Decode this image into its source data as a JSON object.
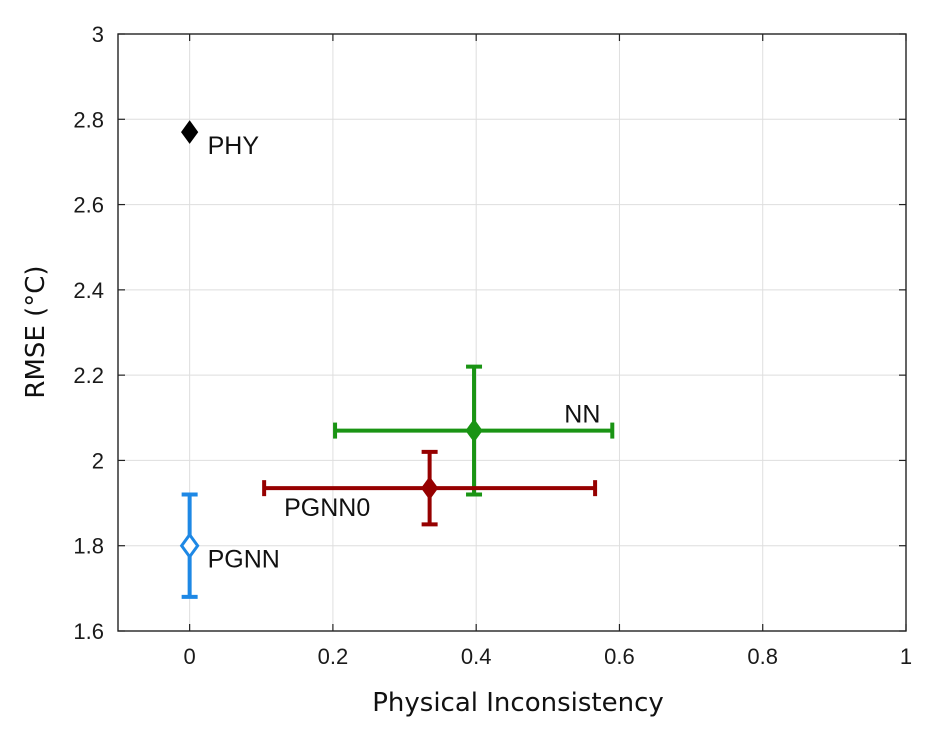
{
  "chart_data": {
    "type": "scatter",
    "xlabel": "Physical Inconsistency",
    "ylabel": "RMSE (°C)",
    "xlim": [
      -0.1,
      1
    ],
    "ylim": [
      1.6,
      3
    ],
    "xticks": [
      0,
      0.2,
      0.4,
      0.6,
      0.8,
      1
    ],
    "xtick_labels": [
      "0",
      "0.2",
      "0.4",
      "0.6",
      "0.8",
      "1"
    ],
    "yticks": [
      1.6,
      1.8,
      2,
      2.2,
      2.4,
      2.6,
      2.8,
      3
    ],
    "ytick_labels": [
      "1.6",
      "1.8",
      "2",
      "2.2",
      "2.4",
      "2.6",
      "2.8",
      "3"
    ],
    "grid": true,
    "legend": "none",
    "series": [
      {
        "name": "PHY",
        "color": "#000000",
        "marker": "diamond-filled",
        "x": 0,
        "y": 2.77,
        "x_err": null,
        "y_err": null,
        "label_position": "below-right"
      },
      {
        "name": "NN",
        "color": "#1a9414",
        "marker": "diamond-filled",
        "x": 0.397,
        "y": 2.07,
        "x_err": [
          0.203,
          0.59
        ],
        "y_err": [
          1.92,
          2.22
        ],
        "label_position": "above-right"
      },
      {
        "name": "PGNN0",
        "color": "#960000",
        "marker": "diamond-filled",
        "x": 0.335,
        "y": 1.935,
        "x_err": [
          0.104,
          0.566
        ],
        "y_err": [
          1.85,
          2.02
        ],
        "label_position": "below-left"
      },
      {
        "name": "PGNN",
        "color": "#1e88e5",
        "marker": "diamond-open",
        "x": 0,
        "y": 1.8,
        "x_err": null,
        "y_err": [
          1.68,
          1.92
        ],
        "label_position": "below-right"
      }
    ]
  }
}
